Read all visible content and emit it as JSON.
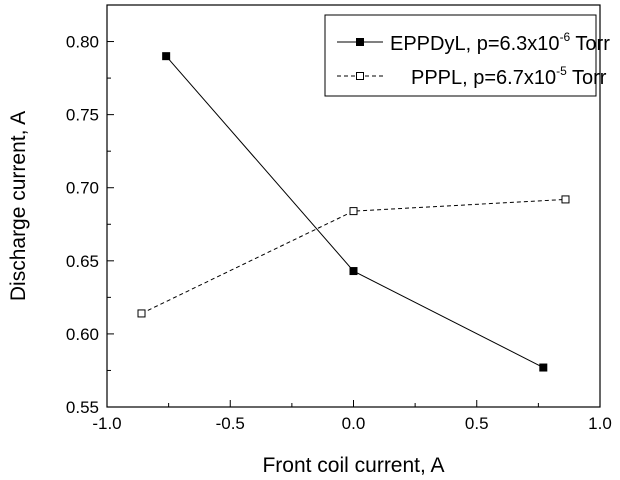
{
  "chart_data": {
    "type": "line",
    "xlabel": "Front coil current, A",
    "ylabel": "Discharge current, A",
    "xlim": [
      -1.0,
      1.0
    ],
    "ylim": [
      0.55,
      0.825
    ],
    "x_ticks": [
      -1.0,
      -0.5,
      0.0,
      0.5,
      1.0
    ],
    "x_tick_labels": [
      "-1.0",
      "-0.5",
      "0.0",
      "0.5",
      "1.0"
    ],
    "y_ticks": [
      0.55,
      0.6,
      0.65,
      0.7,
      0.75,
      0.8
    ],
    "y_tick_labels": [
      "0.55",
      "0.60",
      "0.65",
      "0.70",
      "0.75",
      "0.80"
    ],
    "grid": false,
    "legend_position": "top-right",
    "series": [
      {
        "name_main": "EPPDyL, p=6.3x10",
        "name_exp": "-6",
        "name_unit": " Torr",
        "marker": "filled-square",
        "line": "solid",
        "x": [
          -0.76,
          0.0,
          0.77
        ],
        "y": [
          0.79,
          0.643,
          0.577
        ]
      },
      {
        "name_main": "PPPL, p=6.7x10",
        "name_exp": "-5",
        "name_unit": " Torr",
        "marker": "open-square",
        "line": "dashed",
        "x": [
          -0.86,
          0.0,
          0.86
        ],
        "y": [
          0.614,
          0.684,
          0.692
        ]
      }
    ]
  }
}
